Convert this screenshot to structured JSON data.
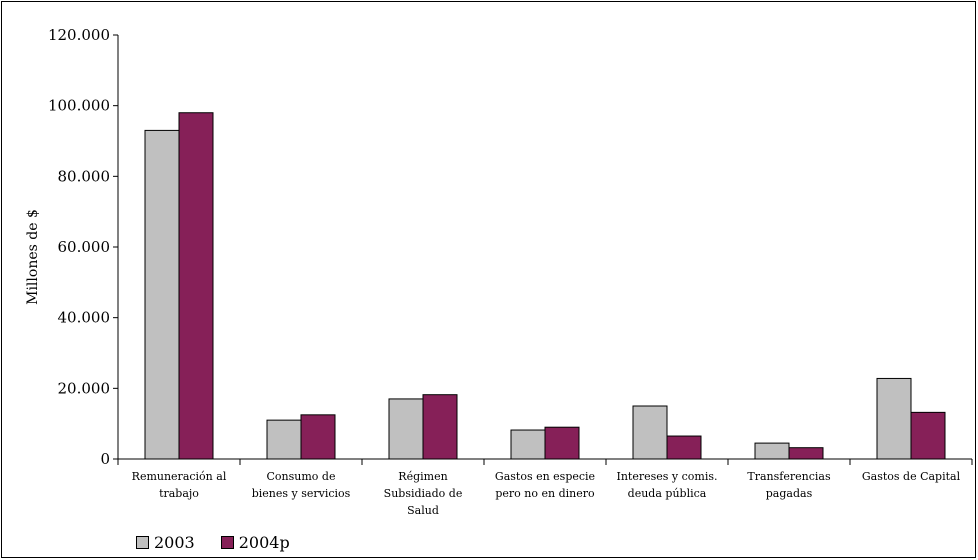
{
  "chart_data": {
    "type": "bar",
    "title": "",
    "ylabel": "Millones de $",
    "xlabel": "",
    "ylim": [
      0,
      120000
    ],
    "yticks": [
      0,
      20000,
      40000,
      60000,
      80000,
      100000,
      120000
    ],
    "ytick_labels": [
      "0",
      "20.000",
      "40.000",
      "60.000",
      "80.000",
      "100.000",
      "120.000"
    ],
    "categories": [
      [
        "Remuneración al",
        "trabajo"
      ],
      [
        "Consumo de",
        "bienes y servicios"
      ],
      [
        "Régimen",
        "Subsidiado de",
        "Salud"
      ],
      [
        "Gastos en especie",
        "pero no en dinero"
      ],
      [
        "Intereses y comis.",
        "deuda pública"
      ],
      [
        "Transferencias",
        "pagadas"
      ],
      [
        "Gastos de Capital"
      ]
    ],
    "series": [
      {
        "name": "2003",
        "color": "#c0c0c0",
        "values": [
          93000,
          11000,
          17000,
          8200,
          15000,
          4500,
          22800
        ]
      },
      {
        "name": "2004p",
        "color": "#862058",
        "values": [
          98000,
          12500,
          18200,
          9000,
          6500,
          3200,
          13200
        ]
      }
    ],
    "grid": false,
    "legend_position": "bottom-left"
  }
}
